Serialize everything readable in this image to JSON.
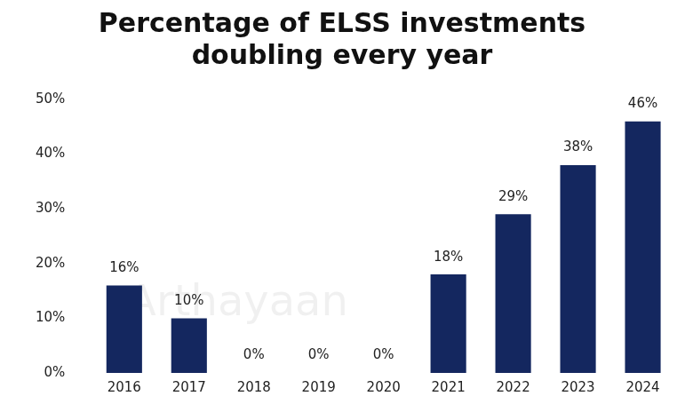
{
  "chart_data": {
    "type": "bar",
    "title": "Percentage of ELSS investments doubling every year",
    "annotations": [
      "Arthayaan"
    ],
    "categories": [
      "2016",
      "2017",
      "2018",
      "2019",
      "2020",
      "2021",
      "2022",
      "2023",
      "2024"
    ],
    "values": [
      16,
      10,
      0,
      0,
      0,
      18,
      29,
      38,
      46
    ],
    "value_labels": [
      "16%",
      "10%",
      "0%",
      "0%",
      "0%",
      "18%",
      "29%",
      "38%",
      "46%"
    ],
    "color": "#14275f",
    "ylim": [
      0,
      50
    ],
    "yticks": [
      {
        "value": 0,
        "label": "0%"
      },
      {
        "value": 10,
        "label": "10%"
      },
      {
        "value": 20,
        "label": "20%"
      },
      {
        "value": 30,
        "label": "30%"
      },
      {
        "value": 40,
        "label": "40%"
      },
      {
        "value": 50,
        "label": "50%"
      }
    ],
    "grid": false,
    "data_labels": true
  }
}
